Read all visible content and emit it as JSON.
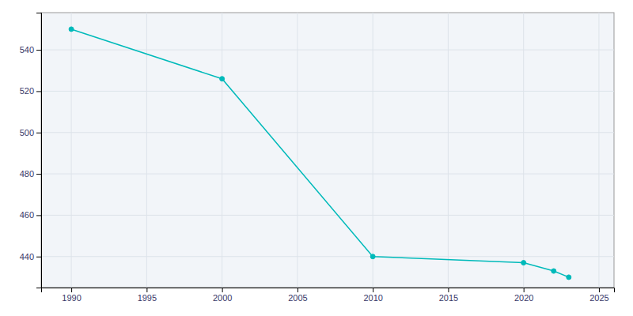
{
  "chart_data": {
    "type": "line",
    "x": [
      1990,
      2000,
      2010,
      2020,
      2022,
      2023
    ],
    "values": [
      550,
      526,
      440,
      437,
      433,
      430
    ],
    "color": "#00BABA",
    "marker": "circle",
    "xlim": [
      1988,
      2026
    ],
    "ylim": [
      425,
      558
    ],
    "xticks": [
      1990,
      1995,
      2000,
      2005,
      2010,
      2015,
      2020,
      2025
    ],
    "yticks": [
      440,
      460,
      480,
      500,
      520,
      540
    ],
    "grid": true
  }
}
